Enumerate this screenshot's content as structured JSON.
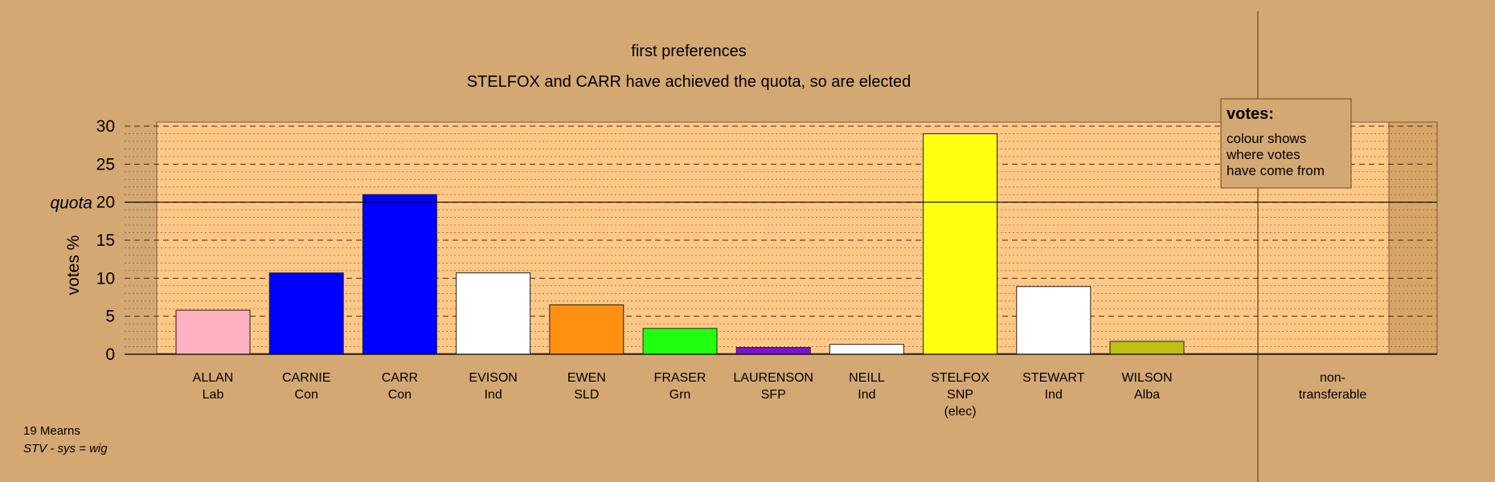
{
  "chart_data": {
    "type": "bar",
    "title": "first preferences",
    "subtitle": "STELFOX and CARR have achieved the quota, so are elected",
    "ylabel": "votes %",
    "ylim": [
      0,
      30
    ],
    "yticks": [
      0,
      5,
      10,
      15,
      20,
      25,
      30
    ],
    "quota": 20,
    "quota_label": "quota",
    "grid": true,
    "bars": [
      {
        "name": "ALLAN",
        "party": "Lab",
        "value": 5.8,
        "color": "#ffb0c0"
      },
      {
        "name": "CARNIE",
        "party": "Con",
        "value": 10.7,
        "color": "#0000ff"
      },
      {
        "name": "CARR",
        "party": "Con",
        "value": 21.0,
        "color": "#0000ff"
      },
      {
        "name": "EVISON",
        "party": "Ind",
        "value": 10.7,
        "color": "#ffffff"
      },
      {
        "name": "EWEN",
        "party": "SLD",
        "value": 6.5,
        "color": "#ff9010"
      },
      {
        "name": "FRASER",
        "party": "Grn",
        "value": 3.4,
        "color": "#20ff10"
      },
      {
        "name": "LAURENSON",
        "party": "SFP",
        "value": 0.9,
        "color": "#8010d0"
      },
      {
        "name": "NEILL",
        "party": "Ind",
        "value": 1.3,
        "color": "#ffffff"
      },
      {
        "name": "STELFOX",
        "party": "SNP",
        "status": "(elec)",
        "value": 29.0,
        "color": "#ffff10"
      },
      {
        "name": "STEWART",
        "party": "Ind",
        "value": 8.9,
        "color": "#ffffff"
      },
      {
        "name": "WILSON",
        "party": "Alba",
        "value": 1.7,
        "color": "#c0c010"
      }
    ],
    "nontransferable": {
      "label_line1": "non-",
      "label_line2": "transferable",
      "value": 0
    },
    "legend": {
      "title": "votes:",
      "lines": [
        "colour shows",
        "where votes",
        "have come from"
      ],
      "position": "top-right"
    },
    "colors": {
      "background": "#d4a873",
      "plot_area": "#ffc887",
      "nontransferable_area": "#d8a568"
    }
  },
  "footer": {
    "ward": "19 Mearns",
    "system": "STV - sys = wig"
  }
}
